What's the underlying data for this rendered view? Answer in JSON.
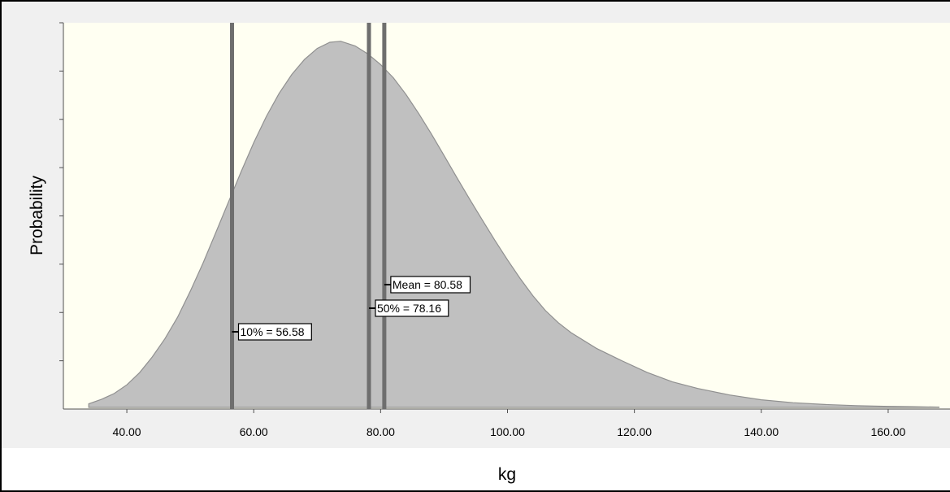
{
  "chart_data": {
    "type": "area",
    "xlabel": "kg",
    "ylabel": "Probability",
    "xlim": [
      30.0,
      170.0
    ],
    "x_ticks": [
      40,
      60,
      80,
      100,
      120,
      140,
      160
    ],
    "x_tick_labels": [
      "40.00",
      "60.00",
      "80.00",
      "100.00",
      "120.00",
      "140.00",
      "160.00"
    ],
    "y_tick_count": 8,
    "y_tick_labels_shown": false,
    "grid": false,
    "colors": {
      "plot_background": "#fffff2",
      "area_fill": "#c0c0c0",
      "area_stroke": "#909090",
      "marker_line": "#6e6e6e"
    },
    "series": [
      {
        "x": [
          34.0,
          36.0,
          38.0,
          40.0,
          42.0,
          44.0,
          46.0,
          48.0,
          50.0,
          52.0,
          54.0,
          56.0,
          58.0,
          60.0,
          62.0,
          64.0,
          66.0,
          68.0,
          70.0,
          72.0,
          73.7,
          76.0,
          78.0,
          80.0,
          82.0,
          84.0,
          86.0,
          88.0,
          90.0,
          92.0,
          94.0,
          96.0,
          98.0,
          100.0,
          102.0,
          104.0,
          106.0,
          108.0,
          110.0,
          114.0,
          118.0,
          122.0,
          126.0,
          130.0,
          135.0,
          140.0,
          145.0,
          150.0,
          155.0,
          160.0,
          164.0,
          168.0
        ],
        "y": [
          0.01,
          0.022,
          0.038,
          0.062,
          0.095,
          0.138,
          0.188,
          0.247,
          0.318,
          0.395,
          0.478,
          0.562,
          0.645,
          0.725,
          0.797,
          0.86,
          0.912,
          0.953,
          0.983,
          1.0,
          1.003,
          0.99,
          0.968,
          0.939,
          0.903,
          0.857,
          0.805,
          0.749,
          0.69,
          0.63,
          0.571,
          0.514,
          0.458,
          0.404,
          0.353,
          0.306,
          0.265,
          0.232,
          0.205,
          0.162,
          0.128,
          0.096,
          0.07,
          0.052,
          0.034,
          0.021,
          0.013,
          0.008,
          0.005,
          0.003,
          0.002,
          0.001
        ]
      }
    ],
    "markers": [
      {
        "name": "10%",
        "value": 56.58,
        "label": "10% = 56.58"
      },
      {
        "name": "50%",
        "value": 78.16,
        "label": "50% = 78.16"
      },
      {
        "name": "Mean",
        "value": 80.58,
        "label": "Mean = 80.58"
      }
    ]
  }
}
